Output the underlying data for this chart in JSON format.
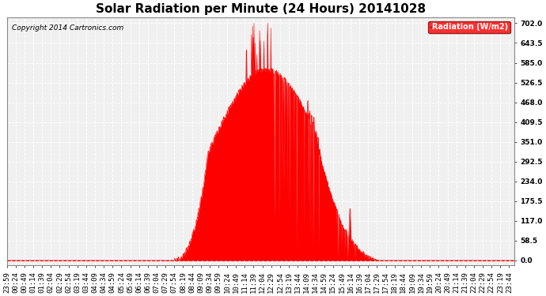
{
  "title": "Solar Radiation per Minute (24 Hours) 20141028",
  "copyright_text": "Copyright 2014 Cartronics.com",
  "legend_label": "Radiation (W/m2)",
  "ylabel_values": [
    0.0,
    58.5,
    117.0,
    175.5,
    234.0,
    292.5,
    351.0,
    409.5,
    468.0,
    526.5,
    585.0,
    643.5,
    702.0
  ],
  "ymax": 720,
  "ymin": -15,
  "fill_color": "#FF0000",
  "line_color": "#FF0000",
  "background_color": "#F0F0F0",
  "grid_color": "#CCCCCC",
  "zero_line_color": "#FF0000",
  "title_fontsize": 11,
  "tick_fontsize": 6.5,
  "figwidth": 6.9,
  "figheight": 3.75,
  "dpi": 100
}
